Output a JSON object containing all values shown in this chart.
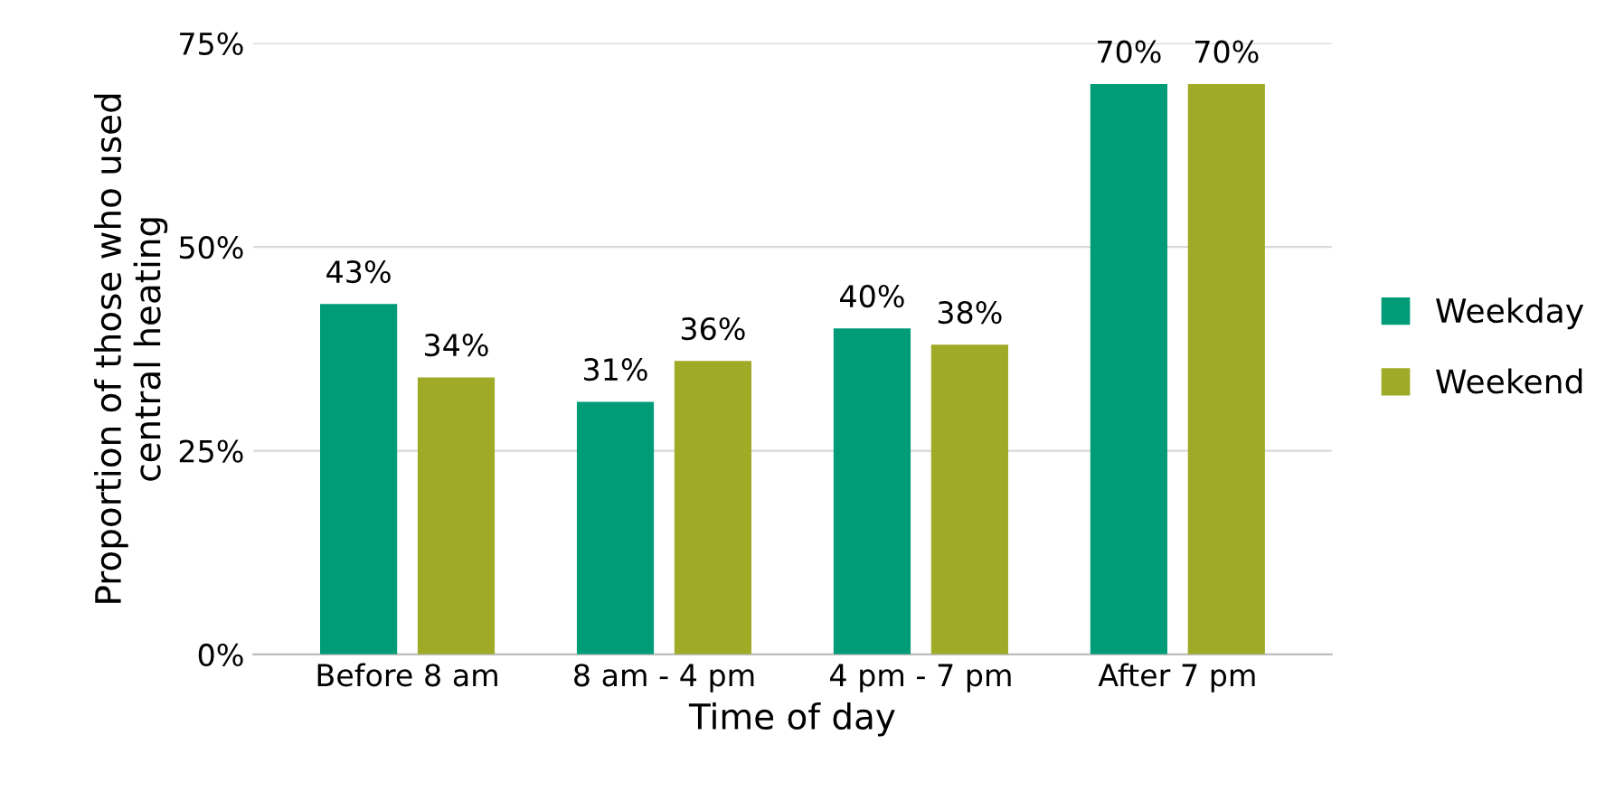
{
  "chart_data": {
    "type": "bar",
    "xlabel": "Time of day",
    "ylabel": "Proportion of those who used\ncentral heating",
    "categories": [
      "Before 8 am",
      "8 am - 4 pm",
      "4 pm - 7 pm",
      "After 7 pm"
    ],
    "series": [
      {
        "name": "Weekday",
        "color": "#009b77",
        "values": [
          43,
          31,
          40,
          70
        ],
        "value_labels": [
          "43%",
          "31%",
          "40%",
          "70%"
        ]
      },
      {
        "name": "Weekend",
        "color": "#9faa26",
        "values": [
          34,
          36,
          38,
          70
        ],
        "value_labels": [
          "34%",
          "36%",
          "38%",
          "70%"
        ]
      }
    ],
    "ylim": [
      0,
      75
    ],
    "yticks": [
      {
        "value": 0,
        "label": "0%"
      },
      {
        "value": 25,
        "label": "25%"
      },
      {
        "value": 50,
        "label": "50%"
      },
      {
        "value": 75,
        "label": "75%"
      }
    ],
    "grid": "y",
    "legend": "right"
  }
}
